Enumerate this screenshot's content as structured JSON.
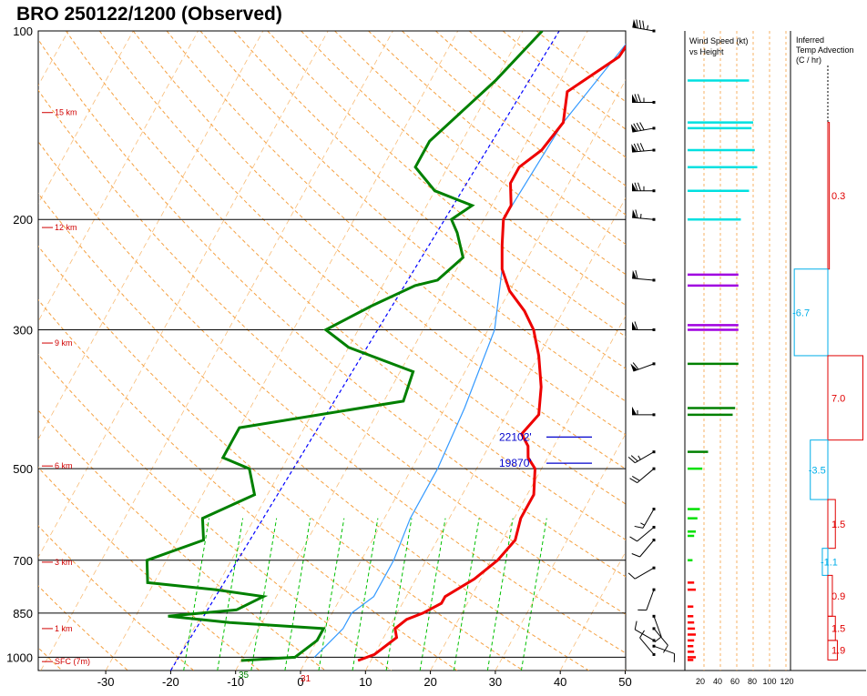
{
  "title": "BRO   250122/1200  (Observed)",
  "chart_data": {
    "type": "skew-t log-p sounding",
    "station": "BRO",
    "time": "250122/1200",
    "status": "Observed",
    "pressure_ticks": [
      100,
      200,
      300,
      500,
      700,
      850,
      1000
    ],
    "temp_ticks": [
      -30,
      -20,
      -10,
      0,
      10,
      20,
      30,
      40,
      50
    ],
    "height_labels": [
      {
        "label": "15 km",
        "p": 135
      },
      {
        "label": "12 km",
        "p": 206
      },
      {
        "label": "9 km",
        "p": 315
      },
      {
        "label": "6 km",
        "p": 495
      },
      {
        "label": "3 km",
        "p": 705
      },
      {
        "label": "1 km",
        "p": 900
      },
      {
        "label": "SFC (7m)",
        "p": 1016
      }
    ],
    "surface_labels": {
      "temperature": "31",
      "dewpoint": "35"
    },
    "level_markers": [
      {
        "label": "22102'",
        "p": 445
      },
      {
        "label": "19870'",
        "p": 490
      }
    ],
    "temperature_profile": [
      [
        100,
        -2.5
      ],
      [
        110,
        -3
      ],
      [
        125,
        -8
      ],
      [
        140,
        -6
      ],
      [
        155,
        -7
      ],
      [
        165,
        -9
      ],
      [
        175,
        -9
      ],
      [
        190,
        -7
      ],
      [
        200,
        -7
      ],
      [
        220,
        -5
      ],
      [
        240,
        -3
      ],
      [
        260,
        0
      ],
      [
        280,
        4
      ],
      [
        300,
        7
      ],
      [
        330,
        10
      ],
      [
        370,
        13
      ],
      [
        410,
        15
      ],
      [
        440,
        14
      ],
      [
        460,
        16
      ],
      [
        480,
        17
      ],
      [
        500,
        19
      ],
      [
        550,
        21
      ],
      [
        600,
        21
      ],
      [
        650,
        22
      ],
      [
        700,
        21
      ],
      [
        750,
        19
      ],
      [
        800,
        16
      ],
      [
        820,
        16
      ],
      [
        850,
        14
      ],
      [
        870,
        12
      ],
      [
        900,
        11
      ],
      [
        930,
        12
      ],
      [
        960,
        11
      ],
      [
        990,
        10
      ],
      [
        1012,
        8
      ]
    ],
    "dewpoint_profile": [
      [
        100,
        -17
      ],
      [
        120,
        -20
      ],
      [
        150,
        -25
      ],
      [
        165,
        -25
      ],
      [
        180,
        -20
      ],
      [
        190,
        -13
      ],
      [
        200,
        -15
      ],
      [
        210,
        -13
      ],
      [
        230,
        -10
      ],
      [
        250,
        -12
      ],
      [
        255,
        -15
      ],
      [
        275,
        -20
      ],
      [
        300,
        -25
      ],
      [
        320,
        -20
      ],
      [
        350,
        -8
      ],
      [
        390,
        -7
      ],
      [
        430,
        -30
      ],
      [
        480,
        -30
      ],
      [
        500,
        -25
      ],
      [
        550,
        -22
      ],
      [
        600,
        -28
      ],
      [
        650,
        -26
      ],
      [
        700,
        -33
      ],
      [
        760,
        -31
      ],
      [
        780,
        -20
      ],
      [
        800,
        -12
      ],
      [
        840,
        -15
      ],
      [
        860,
        -25
      ],
      [
        880,
        -15
      ],
      [
        900,
        0
      ],
      [
        940,
        0
      ],
      [
        1000,
        -2
      ],
      [
        1012,
        -10
      ]
    ],
    "parcel_profile": [
      [
        100,
        -2.5
      ],
      [
        140,
        -6
      ],
      [
        200,
        -7
      ],
      [
        240,
        -3
      ],
      [
        300,
        1
      ],
      [
        400,
        3
      ],
      [
        500,
        4
      ],
      [
        600,
        4
      ],
      [
        700,
        5
      ],
      [
        800,
        5
      ],
      [
        850,
        3
      ],
      [
        900,
        3
      ],
      [
        950,
        2
      ],
      [
        1000,
        1
      ]
    ],
    "wind_speed_panel": {
      "title": "Wind Speed (kt) vs Height",
      "axis_labels": [
        "20",
        "40",
        "60",
        "80",
        "100",
        "120"
      ],
      "bars": [
        {
          "p": 120,
          "speed": 75,
          "color": "#00e0e0"
        },
        {
          "p": 140,
          "speed": 80,
          "color": "#00e0e0"
        },
        {
          "p": 143,
          "speed": 78,
          "color": "#00e0e0"
        },
        {
          "p": 155,
          "speed": 82,
          "color": "#00e0e0"
        },
        {
          "p": 165,
          "speed": 85,
          "color": "#00e0e0"
        },
        {
          "p": 180,
          "speed": 75,
          "color": "#00e0e0"
        },
        {
          "p": 200,
          "speed": 65,
          "color": "#00e0e0"
        },
        {
          "p": 245,
          "speed": 62,
          "color": "#a000e0"
        },
        {
          "p": 255,
          "speed": 62,
          "color": "#a000e0"
        },
        {
          "p": 295,
          "speed": 62,
          "color": "#a000e0"
        },
        {
          "p": 300,
          "speed": 62,
          "color": "#a000e0"
        },
        {
          "p": 340,
          "speed": 62,
          "color": "#008000"
        },
        {
          "p": 400,
          "speed": 58,
          "color": "#008000"
        },
        {
          "p": 410,
          "speed": 55,
          "color": "#008000"
        },
        {
          "p": 470,
          "speed": 25,
          "color": "#008000"
        },
        {
          "p": 500,
          "speed": 18,
          "color": "#00e000"
        },
        {
          "p": 580,
          "speed": 15,
          "color": "#00e000"
        },
        {
          "p": 600,
          "speed": 12,
          "color": "#00e000"
        },
        {
          "p": 630,
          "speed": 10,
          "color": "#00e000"
        },
        {
          "p": 640,
          "speed": 8,
          "color": "#00e000"
        },
        {
          "p": 700,
          "speed": 6,
          "color": "#00e000"
        },
        {
          "p": 760,
          "speed": 8,
          "color": "#ff0000"
        },
        {
          "p": 780,
          "speed": 10,
          "color": "#ff0000"
        },
        {
          "p": 830,
          "speed": 7,
          "color": "#ff0000"
        },
        {
          "p": 860,
          "speed": 7,
          "color": "#ff0000"
        },
        {
          "p": 880,
          "speed": 8,
          "color": "#ff0000"
        },
        {
          "p": 900,
          "speed": 9,
          "color": "#ff0000"
        },
        {
          "p": 920,
          "speed": 10,
          "color": "#ff0000"
        },
        {
          "p": 940,
          "speed": 8,
          "color": "#ff0000"
        },
        {
          "p": 960,
          "speed": 7,
          "color": "#ff0000"
        },
        {
          "p": 980,
          "speed": 8,
          "color": "#ff0000"
        },
        {
          "p": 1000,
          "speed": 10,
          "color": "#ff0000"
        },
        {
          "p": 1010,
          "speed": 7,
          "color": "#ff0000"
        }
      ]
    },
    "temp_advection_panel": {
      "title": "Inferred Temp Advection (C / hr)",
      "layers": [
        {
          "p_top": 140,
          "p_bot": 240,
          "value": 0.3,
          "color": "#e00000"
        },
        {
          "p_top": 240,
          "p_bot": 330,
          "value": -6.7,
          "color": "#00aee8"
        },
        {
          "p_top": 330,
          "p_bot": 450,
          "value": 7.0,
          "color": "#e00000"
        },
        {
          "p_top": 450,
          "p_bot": 560,
          "value": -3.5,
          "color": "#00aee8"
        },
        {
          "p_top": 560,
          "p_bot": 670,
          "value": 1.5,
          "color": "#e00000"
        },
        {
          "p_top": 670,
          "p_bot": 740,
          "value": -1.1,
          "color": "#00aee8"
        },
        {
          "p_top": 740,
          "p_bot": 860,
          "value": 0.9,
          "color": "#e00000"
        },
        {
          "p_top": 860,
          "p_bot": 940,
          "value": 1.5,
          "color": "#e00000"
        },
        {
          "p_top": 940,
          "p_bot": 1010,
          "value": 1.9,
          "color": "#e00000"
        }
      ]
    },
    "wind_barbs": [
      {
        "p": 100,
        "dir": 280,
        "speed": 85
      },
      {
        "p": 130,
        "dir": 270,
        "speed": 75
      },
      {
        "p": 143,
        "dir": 260,
        "speed": 80
      },
      {
        "p": 155,
        "dir": 265,
        "speed": 80
      },
      {
        "p": 180,
        "dir": 270,
        "speed": 75
      },
      {
        "p": 200,
        "dir": 275,
        "speed": 65
      },
      {
        "p": 250,
        "dir": 275,
        "speed": 60
      },
      {
        "p": 300,
        "dir": 270,
        "speed": 60
      },
      {
        "p": 340,
        "dir": 250,
        "speed": 60
      },
      {
        "p": 410,
        "dir": 270,
        "speed": 55
      },
      {
        "p": 470,
        "dir": 240,
        "speed": 25
      },
      {
        "p": 500,
        "dir": 230,
        "speed": 20
      },
      {
        "p": 580,
        "dir": 210,
        "speed": 15
      },
      {
        "p": 620,
        "dir": 230,
        "speed": 12
      },
      {
        "p": 650,
        "dir": 220,
        "speed": 12
      },
      {
        "p": 720,
        "dir": 240,
        "speed": 10
      },
      {
        "p": 780,
        "dir": 200,
        "speed": 10
      },
      {
        "p": 860,
        "dir": 160,
        "speed": 10
      },
      {
        "p": 900,
        "dir": 140,
        "speed": 10
      },
      {
        "p": 940,
        "dir": 300,
        "speed": 10
      },
      {
        "p": 960,
        "dir": 110,
        "speed": 10
      },
      {
        "p": 990,
        "dir": 320,
        "speed": 10
      }
    ]
  }
}
